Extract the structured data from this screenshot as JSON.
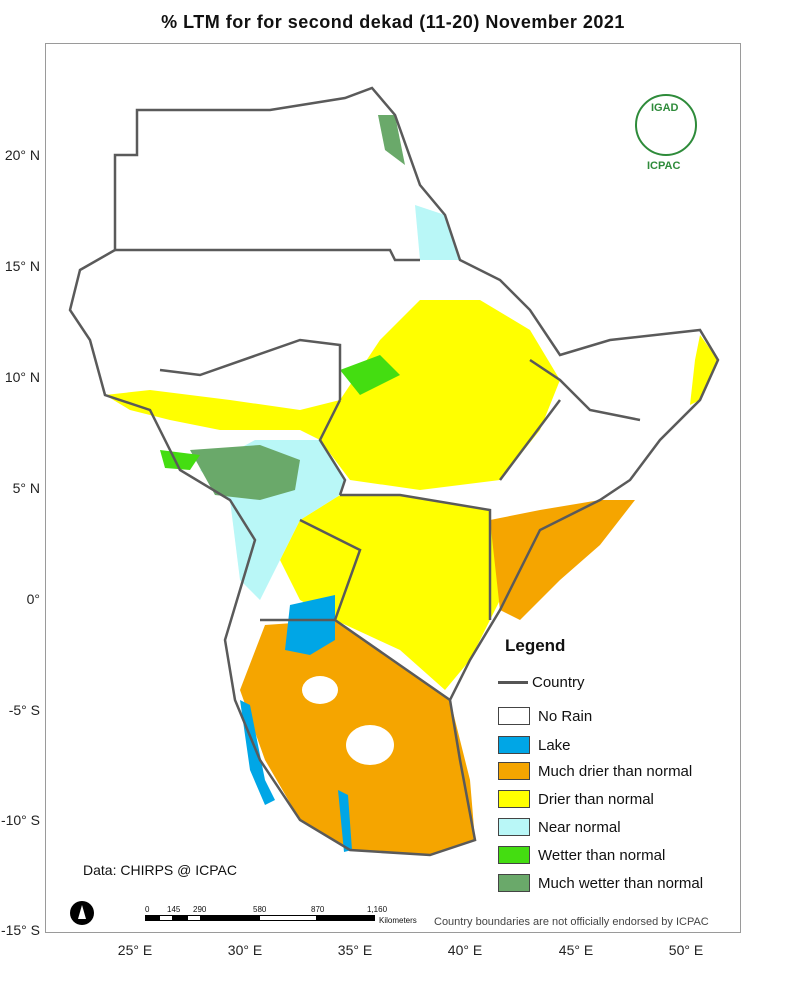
{
  "title": "% LTM for  for second dekad (11-20) November 2021",
  "y_axis_labels": [
    "20° N",
    "15° N",
    "10° N",
    "5° N",
    "0°",
    "-5° S",
    "-10° S",
    "-15° S"
  ],
  "x_axis_labels": [
    "25° E",
    "30° E",
    "35° E",
    "40° E",
    "45° E",
    "50° E"
  ],
  "legend": {
    "title": "Legend",
    "country_label": "Country",
    "items": [
      {
        "label": "No Rain",
        "color": "#ffffff"
      },
      {
        "label": "Lake",
        "color": "#00a6e6"
      },
      {
        "label": "Much drier than normal",
        "color": "#f5a500"
      },
      {
        "label": "Drier than normal",
        "color": "#ffff00"
      },
      {
        "label": "Near normal",
        "color": "#b9f7f7"
      },
      {
        "label": "Wetter than normal",
        "color": "#44dd11"
      },
      {
        "label": "Much wetter than normal",
        "color": "#6aa96a"
      }
    ]
  },
  "data_source": "Data: CHIRPS @ ICPAC",
  "disclaimer": "Country boundaries are not officially endorsed by ICPAC",
  "logo": {
    "top": "IGAD",
    "bottom": "ICPAC"
  },
  "scale_bar": {
    "ticks": [
      "0",
      "145",
      "290",
      "580",
      "870",
      "1,160"
    ],
    "unit": "Kilometers"
  }
}
